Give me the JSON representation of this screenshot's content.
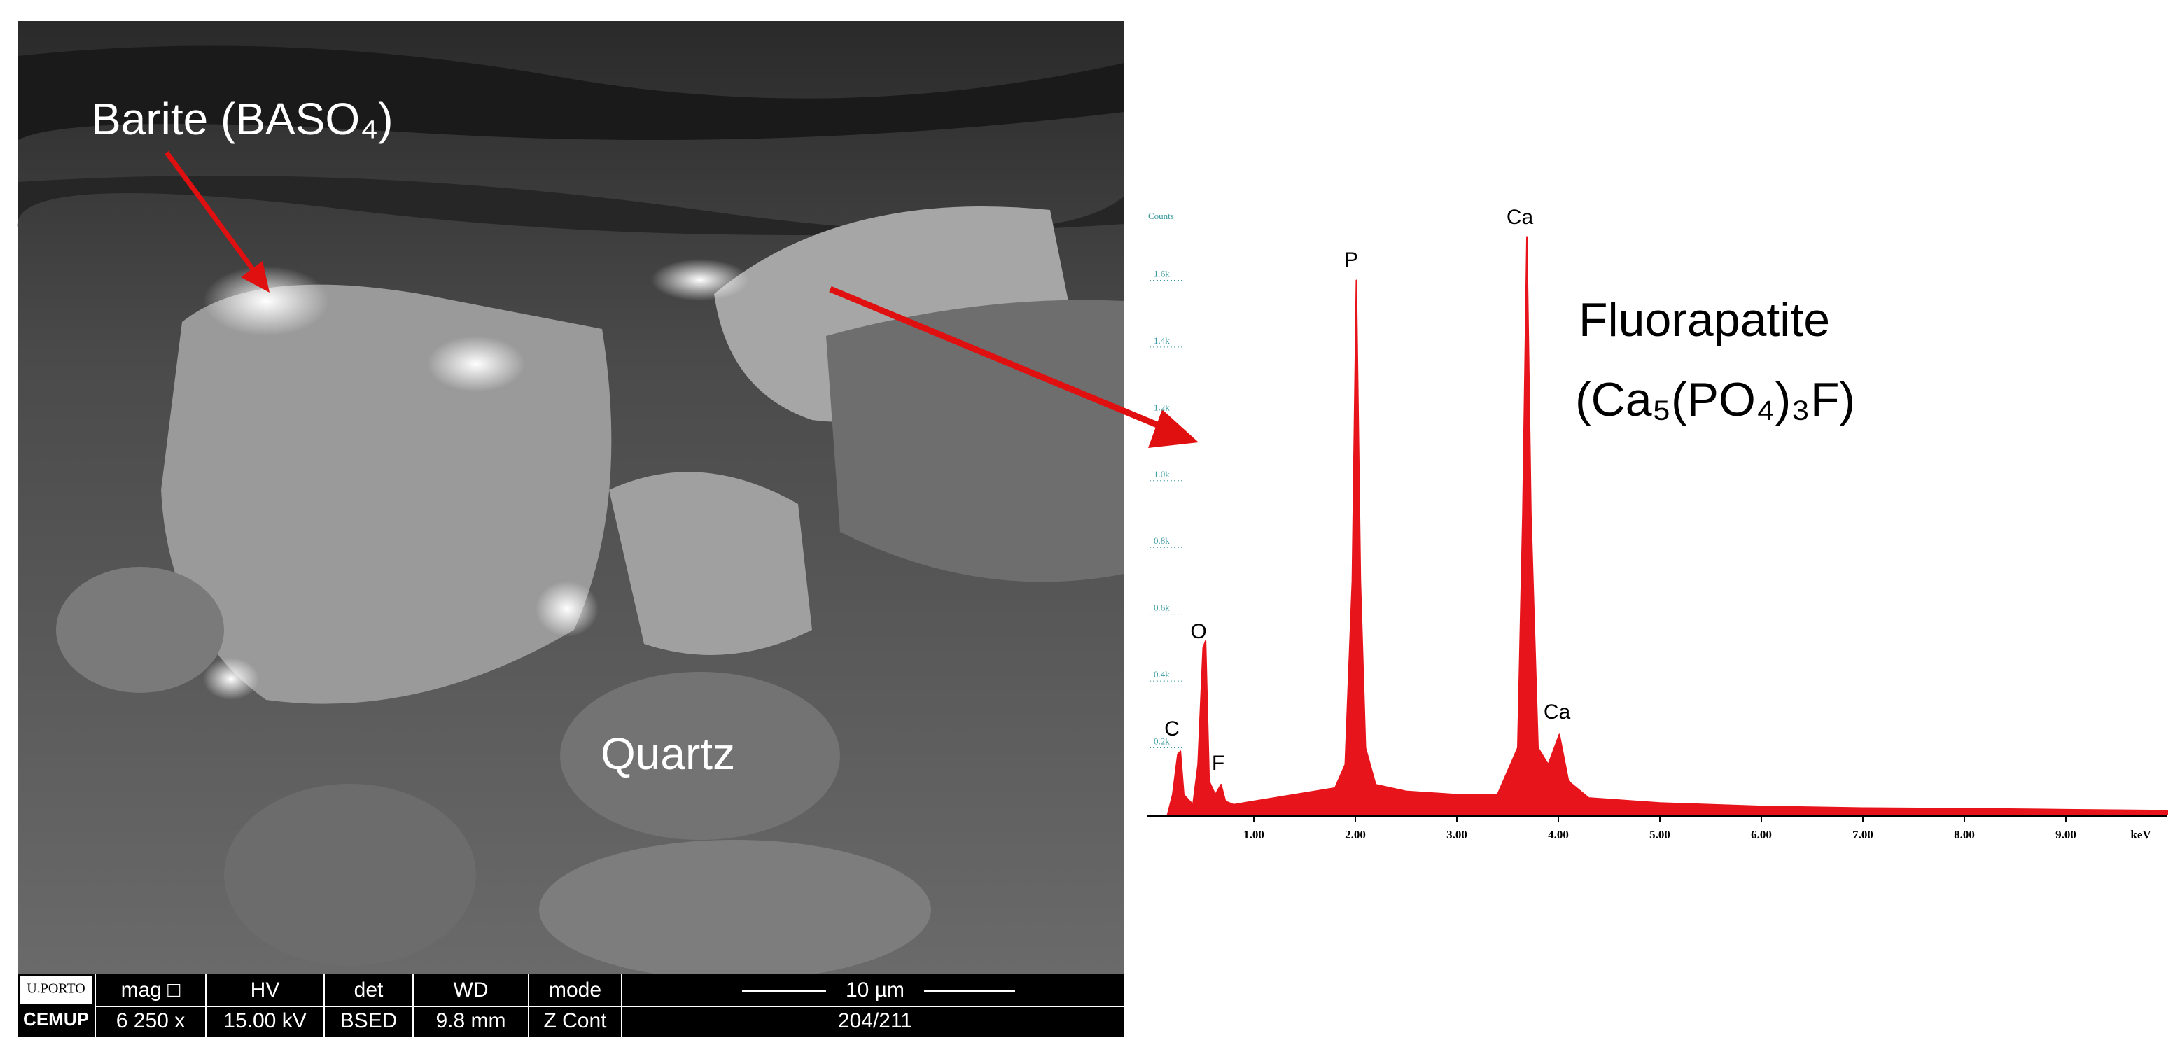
{
  "image": {
    "labels": {
      "barite": "Barite (BASO₄)",
      "quartz": "Quartz"
    },
    "info_bar": {
      "logo_top": "U.PORTO",
      "logo_bottom": "CEMUP",
      "columns": [
        [
          "mag □",
          "6 250 x"
        ],
        [
          "HV",
          "15.00 kV"
        ],
        [
          "det",
          "BSED"
        ],
        [
          "WD",
          "9.8 mm"
        ],
        [
          "mode",
          "Z Cont"
        ]
      ],
      "scale_bar": "10 µm",
      "frame": "204/211"
    }
  },
  "mineral": {
    "name": "Fluorapatite",
    "formula": "(Ca₅(PO₄)₃F)"
  },
  "chart_data": {
    "type": "area",
    "color": "#e8141b",
    "y_label": "Counts",
    "x_label": "keV",
    "x": [
      0.15,
      0.2,
      0.25,
      0.277,
      0.31,
      0.4,
      0.45,
      0.5,
      0.525,
      0.56,
      0.62,
      0.677,
      0.72,
      0.8,
      1.0,
      1.2,
      1.4,
      1.6,
      1.8,
      1.9,
      1.97,
      2.01,
      2.05,
      2.1,
      2.2,
      2.5,
      3.0,
      3.4,
      3.6,
      3.65,
      3.69,
      3.73,
      3.8,
      3.9,
      4.01,
      4.1,
      4.3,
      5.0,
      6.0,
      7.0,
      8.0,
      9.0,
      10.0
    ],
    "values": [
      0,
      60,
      180,
      190,
      60,
      30,
      150,
      500,
      520,
      100,
      60,
      90,
      40,
      30,
      40,
      50,
      60,
      70,
      80,
      150,
      700,
      1600,
      700,
      200,
      90,
      70,
      60,
      60,
      200,
      900,
      1730,
      900,
      200,
      150,
      240,
      100,
      50,
      35,
      25,
      20,
      18,
      15,
      12
    ],
    "xlim": [
      0,
      10
    ],
    "ylim": [
      0,
      1800
    ],
    "xticks": [
      {
        "value": 1,
        "label": "1.00"
      },
      {
        "value": 2,
        "label": "2.00"
      },
      {
        "value": 3,
        "label": "3.00"
      },
      {
        "value": 4,
        "label": "4.00"
      },
      {
        "value": 5,
        "label": "5.00"
      },
      {
        "value": 6,
        "label": "6.00"
      },
      {
        "value": 7,
        "label": "7.00"
      },
      {
        "value": 8,
        "label": "8.00"
      },
      {
        "value": 9,
        "label": "9.00"
      }
    ],
    "yticks": [
      {
        "value": 200,
        "label": "0.2k"
      },
      {
        "value": 400,
        "label": "0.4k"
      },
      {
        "value": 600,
        "label": "0.6k"
      },
      {
        "value": 800,
        "label": "0.8k"
      },
      {
        "value": 1000,
        "label": "1.0k"
      },
      {
        "value": 1200,
        "label": "1.2k"
      },
      {
        "value": 1400,
        "label": "1.4k"
      },
      {
        "value": 1600,
        "label": "1.6k"
      }
    ],
    "annotations": [
      "C",
      "F",
      "O",
      "P",
      "Ca",
      "Ca"
    ]
  }
}
